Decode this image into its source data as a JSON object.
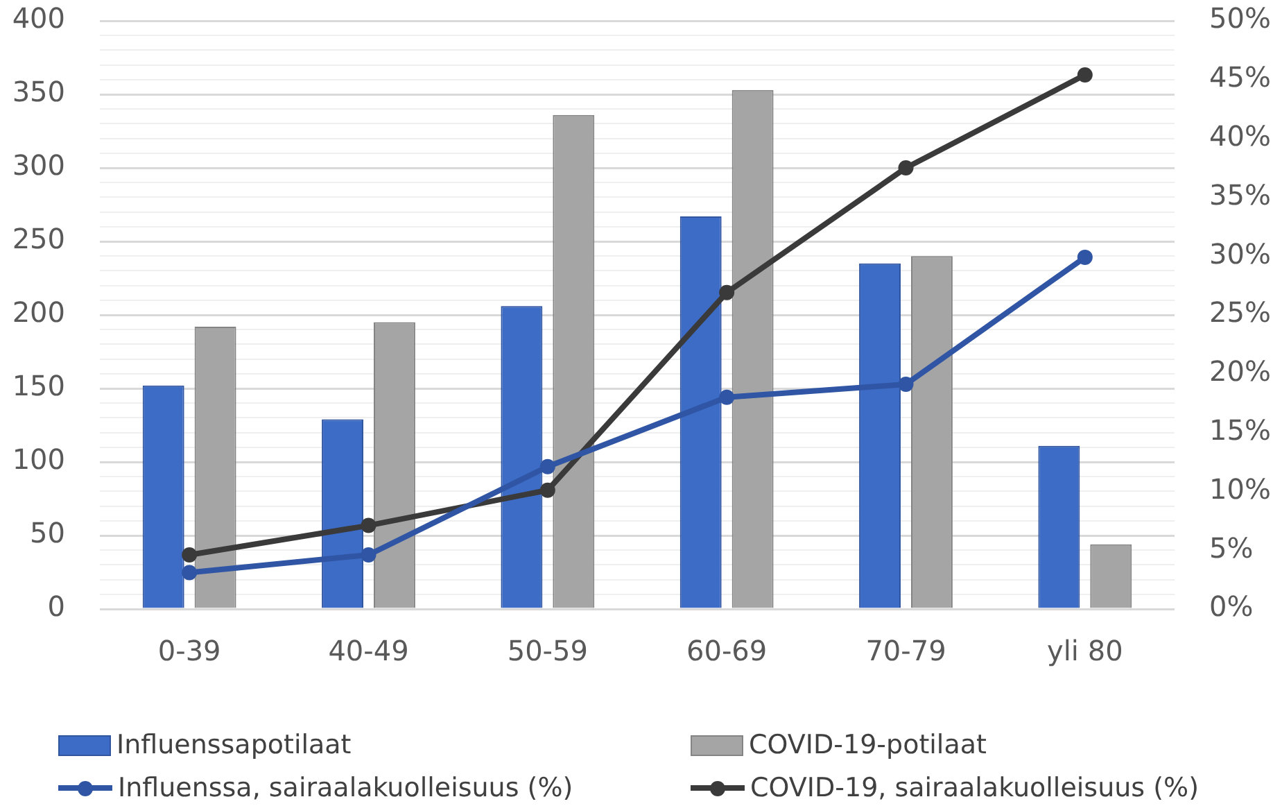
{
  "chart_data": {
    "type": "bar",
    "categories": [
      "0-39",
      "40-49",
      "50-59",
      "60-69",
      "70-79",
      "yli 80"
    ],
    "series": [
      {
        "name": "Influenssapotilaat",
        "color": "#3d6cc7",
        "values": [
          152,
          129,
          206,
          267,
          235,
          111
        ]
      },
      {
        "name": "COVID-19-potilaat",
        "color": "#a5a5a5",
        "values": [
          192,
          195,
          336,
          353,
          240,
          44
        ]
      },
      {
        "name": "Influenssa, sairaalakuolleisuus (%)",
        "type": "line",
        "axis": "y2",
        "color": "#2f55a4",
        "values": [
          3.1,
          4.6,
          12.1,
          18.0,
          19.1,
          29.9
        ]
      },
      {
        "name": "COVID-19, sairaalakuolleisuus (%)",
        "type": "line",
        "axis": "y2",
        "color": "#3a3a3a",
        "values": [
          4.6,
          7.1,
          10.1,
          26.9,
          37.5,
          45.4
        ]
      }
    ],
    "ylim": [
      0,
      400
    ],
    "yticks": [
      0,
      {
        "value": 10,
        "label": null
      },
      {
        "value": 20,
        "label": null
      },
      {
        "value": 30,
        "label": null
      },
      {
        "value": 40,
        "label": null
      },
      50,
      {
        "value": 60,
        "label": null
      },
      {
        "value": 70,
        "label": null
      },
      {
        "value": 80,
        "label": null
      },
      {
        "value": 90,
        "label": null
      },
      100,
      {
        "value": 110,
        "label": null
      },
      {
        "value": 120,
        "label": null
      },
      {
        "value": 130,
        "label": null
      },
      {
        "value": 140,
        "label": null
      },
      150,
      {
        "value": 160,
        "label": null
      },
      {
        "value": 170,
        "label": null
      },
      {
        "value": 180,
        "label": null
      },
      {
        "value": 190,
        "label": null
      },
      200,
      {
        "value": 210,
        "label": null
      },
      {
        "value": 220,
        "label": null
      },
      {
        "value": 230,
        "label": null
      },
      {
        "value": 240,
        "label": null
      },
      250,
      {
        "value": 260,
        "label": null
      },
      {
        "value": 270,
        "label": null
      },
      {
        "value": 280,
        "label": null
      },
      {
        "value": 290,
        "label": null
      },
      300,
      {
        "value": 310,
        "label": null
      },
      {
        "value": 320,
        "label": null
      },
      {
        "value": 330,
        "label": null
      },
      {
        "value": 340,
        "label": null
      },
      350,
      {
        "value": 360,
        "label": null
      },
      {
        "value": 370,
        "label": null
      },
      {
        "value": 380,
        "label": null
      },
      {
        "value": 390,
        "label": null
      },
      400
    ],
    "y2lim": [
      0,
      50
    ],
    "y2ticks": [
      {
        "value": 0,
        "label": "0%"
      },
      {
        "value": 5,
        "label": "5%"
      },
      {
        "value": 10,
        "label": "10%"
      },
      {
        "value": 15,
        "label": "15%"
      },
      {
        "value": 20,
        "label": "20%"
      },
      {
        "value": 25,
        "label": "25%"
      },
      {
        "value": 30,
        "label": "30%"
      },
      {
        "value": 35,
        "label": "35%"
      },
      {
        "value": 40,
        "label": "40%"
      },
      {
        "value": 45,
        "label": "45%"
      },
      {
        "value": 50,
        "label": "50%"
      }
    ],
    "grid": "y",
    "legend": "bottom",
    "marker": "circle",
    "line_style": "solid"
  }
}
